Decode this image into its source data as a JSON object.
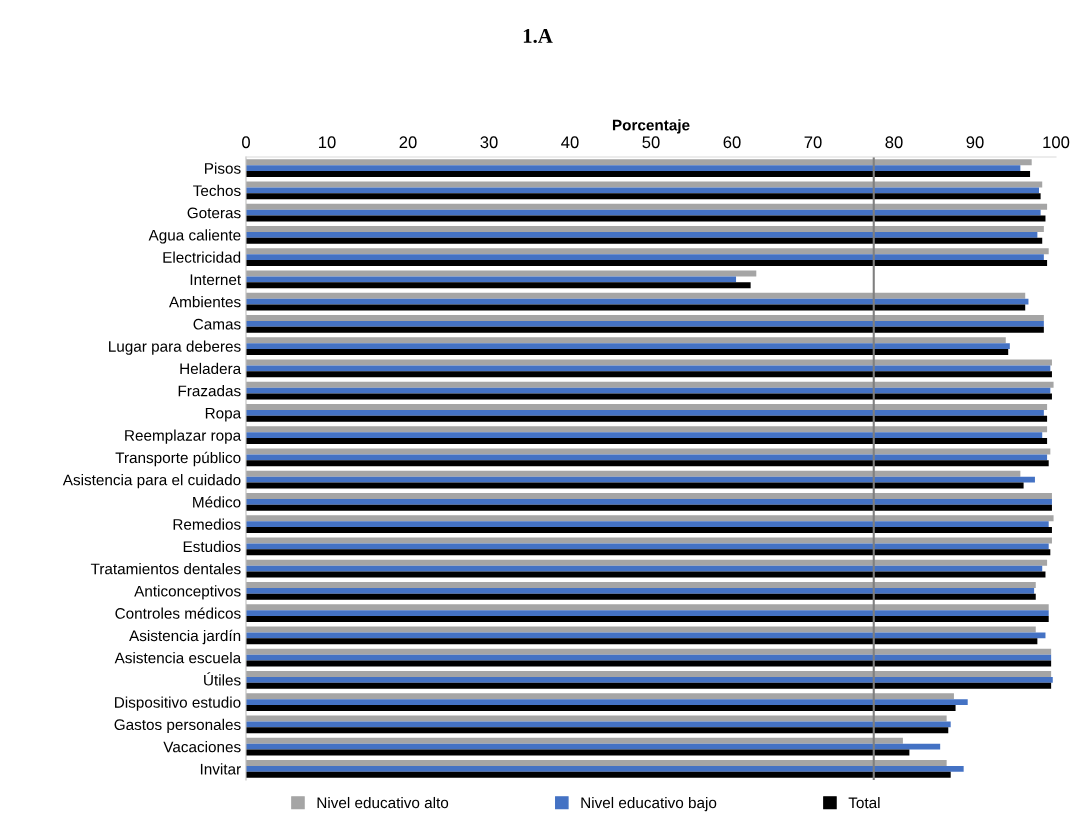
{
  "chart_data": {
    "type": "bar",
    "orientation": "horizontal",
    "title": "1.A",
    "xlabel": "Porcentaje",
    "categories": [
      "Pisos",
      "Techos",
      "Goteras",
      "Agua caliente",
      "Electricidad",
      "Internet",
      "Ambientes",
      "Camas",
      "Lugar para deberes",
      "Heladera",
      "Frazadas",
      "Ropa",
      "Reemplazar ropa",
      "Transporte público",
      "Asistencia para el cuidado",
      "Médico",
      "Remedios",
      "Estudios",
      "Tratamientos dentales",
      "Anticonceptivos",
      "Controles médicos",
      "Asistencia jardín",
      "Asistencia escuela",
      "Útiles",
      "Dispositivo estudio",
      "Gastos personales",
      "Vacaciones",
      "Invitar"
    ],
    "series": [
      {
        "name": "Nivel educativo alto",
        "color": "#a5a5a5",
        "values": [
          97.0,
          98.3,
          98.9,
          98.5,
          99.1,
          63.0,
          96.2,
          98.5,
          93.8,
          99.5,
          99.7,
          98.9,
          98.9,
          99.3,
          95.6,
          99.5,
          99.7,
          99.5,
          98.9,
          97.5,
          99.1,
          97.5,
          99.4,
          99.4,
          87.4,
          86.5,
          81.1,
          86.5
        ]
      },
      {
        "name": "Nivel educativo bajo",
        "color": "#4472c4",
        "values": [
          95.6,
          97.9,
          98.1,
          97.7,
          98.5,
          60.5,
          96.6,
          98.5,
          94.3,
          99.3,
          99.3,
          98.5,
          98.3,
          98.9,
          97.4,
          99.5,
          99.1,
          99.1,
          98.3,
          97.3,
          99.1,
          98.7,
          99.4,
          99.6,
          89.1,
          87.0,
          85.7,
          88.6
        ]
      },
      {
        "name": "Total",
        "color": "#000000",
        "values": [
          96.8,
          98.1,
          98.7,
          98.3,
          98.9,
          62.3,
          96.2,
          98.5,
          94.1,
          99.5,
          99.5,
          98.9,
          98.9,
          99.1,
          96.0,
          99.5,
          99.5,
          99.3,
          98.7,
          97.5,
          99.1,
          97.7,
          99.4,
          99.4,
          87.6,
          86.7,
          81.9,
          87.0
        ]
      }
    ],
    "xlim": [
      0,
      100
    ],
    "xticks": [
      0,
      10,
      20,
      30,
      40,
      50,
      60,
      70,
      80,
      90,
      100
    ],
    "ref_lines": [
      {
        "axis": "x",
        "value": 77.5,
        "color": "#7f7f7f"
      }
    ],
    "legend": "bottom",
    "grid": false
  }
}
